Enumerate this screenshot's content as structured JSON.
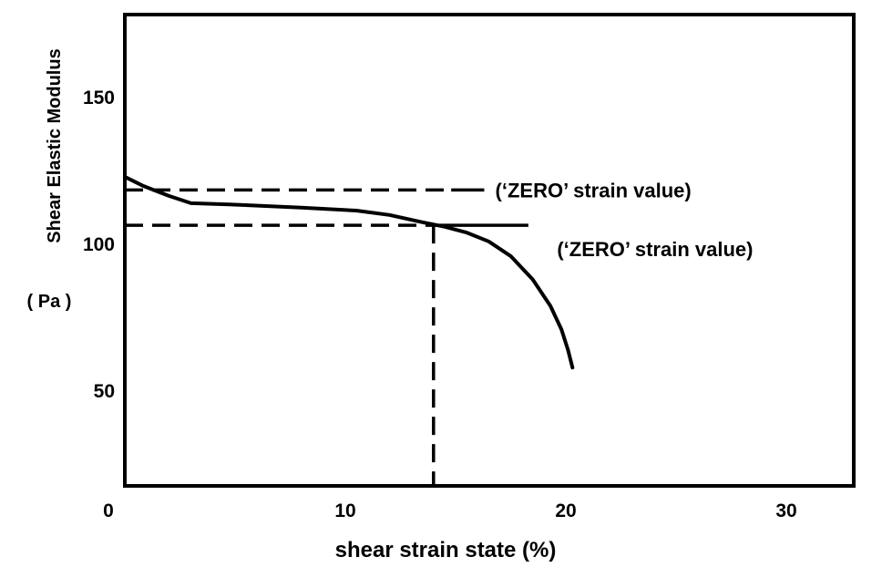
{
  "chart_data": {
    "type": "line",
    "title": "",
    "xlabel": "shear strain state (%)",
    "ylabel": "Shear Elastic Modulus",
    "yunit": "( Pa )",
    "xlim": [
      0,
      30
    ],
    "ylim": [
      15,
      170
    ],
    "grid": false,
    "x_ticks": [
      {
        "value": 0,
        "label": "0"
      },
      {
        "value": 10,
        "label": "10"
      },
      {
        "value": 20,
        "label": "20"
      },
      {
        "value": 30,
        "label": "30"
      }
    ],
    "y_ticks": [
      {
        "value": 50,
        "label": "50"
      },
      {
        "value": 100,
        "label": "100"
      },
      {
        "value": 150,
        "label": "150"
      }
    ],
    "series": [
      {
        "name": "",
        "color": "#000000",
        "x": [
          0,
          0.8,
          2.0,
          3.0,
          5.0,
          8.0,
          10.5,
          12.0,
          13.5,
          14.5,
          15.5,
          16.5,
          17.5,
          18.5,
          19.3,
          19.8,
          20.1,
          20.3
        ],
        "y": [
          123,
          120,
          116.5,
          114,
          113.5,
          112.5,
          111.5,
          110,
          107.5,
          106,
          104,
          101,
          96,
          88,
          79,
          71,
          64,
          58
        ]
      }
    ],
    "reference_lines": [
      {
        "name": "upper-zero-strain-line",
        "type": "horizontal",
        "y": 118.5,
        "x_start": 0,
        "x_end": 16.3,
        "dash_until_x": 14.8
      },
      {
        "name": "lower-zero-strain-line",
        "type": "horizontal",
        "y": 106.5,
        "x_start": 0,
        "x_end": 18.3,
        "dash_until_x": 14.0
      },
      {
        "name": "strain-drop-line",
        "type": "vertical",
        "x": 14.0,
        "y_start": 15,
        "y_end": 106.5
      }
    ],
    "annotations": [
      {
        "text": "(‘ZERO’ strain value)",
        "x": 16.8,
        "y": 118.5
      },
      {
        "text": "(‘ZERO’ strain value)",
        "x": 19.6,
        "y": 98.5
      }
    ]
  }
}
